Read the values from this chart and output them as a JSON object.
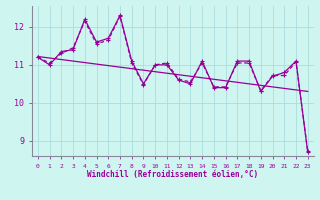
{
  "xlabel": "Windchill (Refroidissement éolien,°C)",
  "bg_color": "#cff5f0",
  "line_color": "#990099",
  "grid_color": "#aadddd",
  "spine_color": "#888899",
  "xlim": [
    -0.5,
    23.5
  ],
  "ylim": [
    8.6,
    12.55
  ],
  "yticks": [
    9,
    10,
    11,
    12
  ],
  "xticks": [
    0,
    1,
    2,
    3,
    4,
    5,
    6,
    7,
    8,
    9,
    10,
    11,
    12,
    13,
    14,
    15,
    16,
    17,
    18,
    19,
    20,
    21,
    22,
    23
  ],
  "series1": [
    11.2,
    11.0,
    11.35,
    11.4,
    12.2,
    11.6,
    11.7,
    12.3,
    11.1,
    10.5,
    11.0,
    11.0,
    10.6,
    10.5,
    11.1,
    10.4,
    10.4,
    11.1,
    11.1,
    10.3,
    10.7,
    10.8,
    11.1,
    8.7
  ],
  "series2": [
    11.2,
    11.05,
    11.3,
    11.45,
    12.15,
    11.55,
    11.65,
    12.28,
    11.05,
    10.48,
    11.0,
    11.05,
    10.62,
    10.55,
    11.05,
    10.42,
    10.42,
    11.05,
    11.05,
    10.32,
    10.72,
    10.72,
    11.08,
    8.72
  ],
  "trend": [
    11.22,
    11.18,
    11.14,
    11.1,
    11.06,
    11.02,
    10.98,
    10.94,
    10.9,
    10.86,
    10.82,
    10.78,
    10.74,
    10.7,
    10.66,
    10.62,
    10.58,
    10.54,
    10.5,
    10.46,
    10.42,
    10.38,
    10.34,
    10.3
  ]
}
